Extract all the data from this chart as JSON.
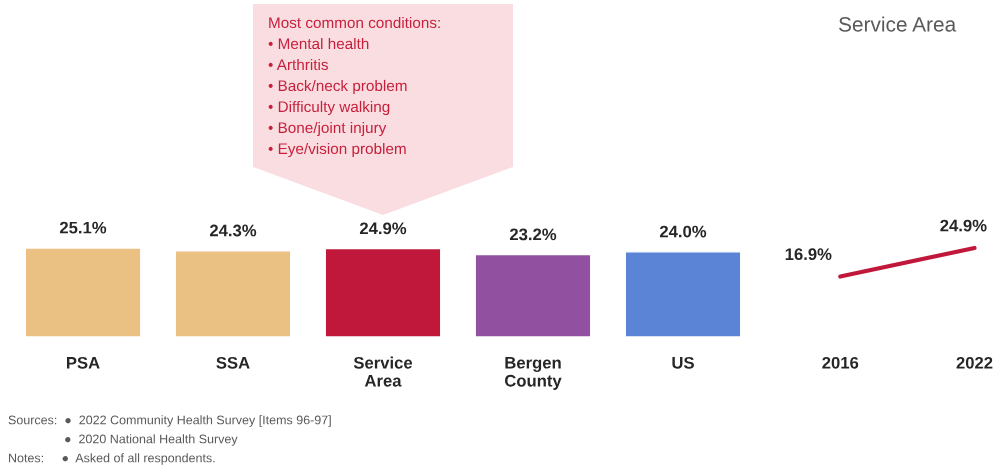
{
  "chart_data": [
    {
      "type": "bar",
      "categories": [
        "PSA",
        "SSA",
        "Service\nArea",
        "Bergen\nCounty",
        "US"
      ],
      "values": [
        25.1,
        24.3,
        24.9,
        23.2,
        24.0
      ],
      "colors": [
        "#ebc083",
        "#ebc083",
        "#c0183a",
        "#9150a0",
        "#5b84d6"
      ],
      "value_labels": [
        "25.1%",
        "24.3%",
        "24.9%",
        "23.2%",
        "24.0%"
      ],
      "tick_labels": "x",
      "grid": false,
      "legend": false,
      "annotations": [
        "Most common conditions:",
        "• Mental health",
        "• Arthritis",
        "• Back/neck problem",
        "• Difficulty walking",
        "• Bone/joint injury",
        "• Eye/vision problem",
        "Sources:  ●  2022 Community Health Survey [Items 96-97]",
        "●  2020 National Health Survey",
        "Notes:     ●  Asked of all respondents."
      ]
    },
    {
      "type": "line",
      "title": "Service Area",
      "categories": [
        "2016",
        "2022"
      ],
      "values": [
        16.9,
        24.9
      ],
      "color": "#c0183a",
      "value_labels": [
        "16.9%",
        "24.9%"
      ],
      "tick_labels": "x",
      "grid": false,
      "legend": false,
      "marker": "none"
    }
  ]
}
